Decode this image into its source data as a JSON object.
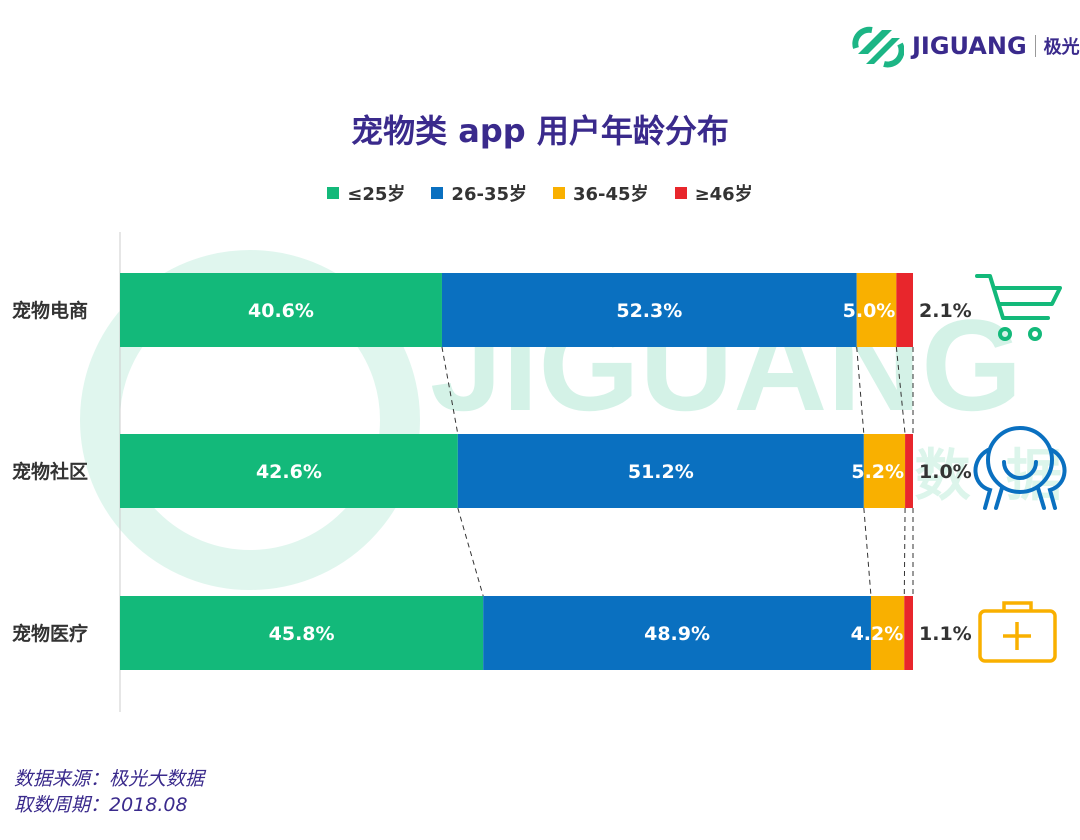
{
  "logo": {
    "brand": "JIGUANG",
    "cn": "极光"
  },
  "watermark": {
    "brand": "JIGUANG",
    "cn": "极 光 大 数 据"
  },
  "colors": {
    "le25": "#13b97a",
    "26_35": "#0a70c0",
    "36_45": "#f9b000",
    "ge46": "#e8262c",
    "title": "#3a2a8c"
  },
  "icons": [
    "shopping-cart-icon",
    "community-person-icon",
    "medical-kit-icon"
  ],
  "chart_data": {
    "type": "bar",
    "orientation": "horizontal",
    "stacked": true,
    "title": "宠物类 app 用户年龄分布",
    "categories": [
      "宠物电商",
      "宠物社区",
      "宠物医疗"
    ],
    "legend_placement": "top",
    "xlim": [
      0,
      100
    ],
    "grid": false,
    "series": [
      {
        "name": "≤25岁",
        "color": "#13b97a",
        "values": [
          40.6,
          42.6,
          45.8
        ],
        "labels": [
          "40.6%",
          "42.6%",
          "45.8%"
        ]
      },
      {
        "name": "26-35岁",
        "color": "#0a70c0",
        "values": [
          52.3,
          51.2,
          48.9
        ],
        "labels": [
          "52.3%",
          "51.2%",
          "48.9%"
        ]
      },
      {
        "name": "36-45岁",
        "color": "#f9b000",
        "values": [
          5.0,
          5.2,
          4.2
        ],
        "labels": [
          "5.0%",
          "5.2%",
          "4.2%"
        ]
      },
      {
        "name": "≥46岁",
        "color": "#e8262c",
        "values": [
          2.1,
          1.0,
          1.1
        ],
        "labels": [
          "2.1%",
          "1.0%",
          "1.1%"
        ]
      }
    ]
  },
  "footer": {
    "source": "数据来源：极光大数据",
    "period": "取数周期：2018.08"
  }
}
